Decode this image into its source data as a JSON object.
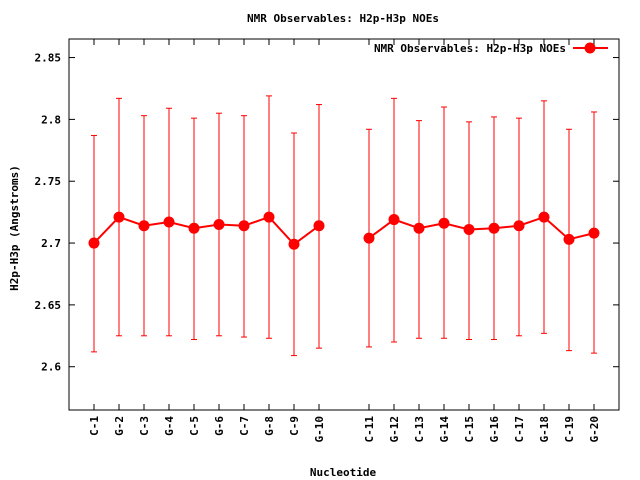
{
  "chart_data": {
    "type": "line",
    "title": "NMR Observables: H2p-H3p NOEs",
    "xlabel": "Nucleotide",
    "ylabel": "H2p-H3p (Angstroms)",
    "ylim": [
      2.565,
      2.865
    ],
    "yticks": [
      "2.6",
      "2.65",
      "2.7",
      "2.75",
      "2.8",
      "2.85"
    ],
    "grid": false,
    "legend_position": "top-right",
    "error_bars": true,
    "series": [
      {
        "name": "NMR Observables: H2p-H3p NOEs",
        "color": "#ff0000",
        "segments": [
          {
            "categories": [
              "C-1",
              "G-2",
              "C-3",
              "G-4",
              "C-5",
              "G-6",
              "C-7",
              "G-8",
              "C-9",
              "G-10"
            ],
            "x": [
              1,
              2,
              3,
              4,
              5,
              6,
              7,
              8,
              9,
              10
            ],
            "values": [
              2.7,
              2.721,
              2.714,
              2.717,
              2.712,
              2.715,
              2.714,
              2.721,
              2.699,
              2.714
            ],
            "err_low": [
              2.612,
              2.625,
              2.625,
              2.625,
              2.622,
              2.625,
              2.624,
              2.623,
              2.609,
              2.615
            ],
            "err_high": [
              2.787,
              2.817,
              2.803,
              2.809,
              2.801,
              2.805,
              2.803,
              2.819,
              2.789,
              2.812
            ]
          },
          {
            "categories": [
              "C-11",
              "G-12",
              "C-13",
              "G-14",
              "C-15",
              "G-16",
              "C-17",
              "G-18",
              "C-19",
              "G-20"
            ],
            "x": [
              12,
              13,
              14,
              15,
              16,
              17,
              18,
              19,
              20,
              21
            ],
            "values": [
              2.704,
              2.719,
              2.712,
              2.716,
              2.711,
              2.712,
              2.714,
              2.721,
              2.703,
              2.708
            ],
            "err_low": [
              2.616,
              2.62,
              2.623,
              2.623,
              2.622,
              2.622,
              2.625,
              2.627,
              2.613,
              2.611
            ],
            "err_high": [
              2.792,
              2.817,
              2.799,
              2.81,
              2.798,
              2.802,
              2.801,
              2.815,
              2.792,
              2.806
            ]
          }
        ]
      }
    ]
  }
}
